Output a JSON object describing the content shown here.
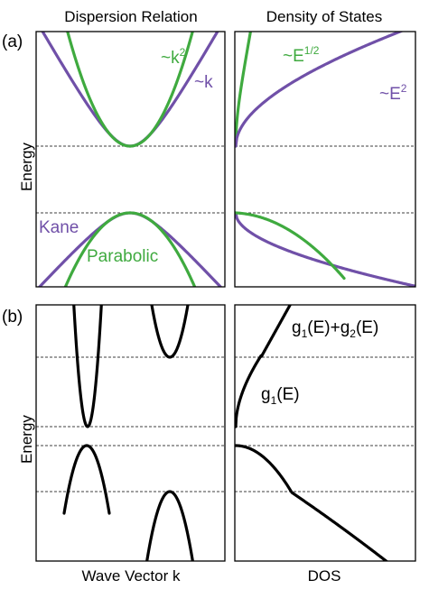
{
  "titles": {
    "dispersion": "Dispersion Relation",
    "dos": "Density of States"
  },
  "panels": {
    "a": "(a)",
    "b": "(b)"
  },
  "axes": {
    "y_label": "Energy",
    "x_label_left": "Wave Vector k",
    "x_label_right": "DOS"
  },
  "annotations_a": {
    "k2_base": "~k",
    "k2_sup": "2",
    "k": "~k",
    "e_half_base": "~E",
    "e_half_sup": "1/2",
    "e2_base": "~E",
    "e2_sup": "2",
    "kane": "Kane",
    "parabolic": "Parabolic"
  },
  "annotations_b": {
    "g1_base": "g",
    "g1_sub": "1",
    "g1_arg": "(E)",
    "gsum_g1": "g",
    "gsum_sub1": "1",
    "gsum_mid": "(E)+g",
    "gsum_sub2": "2",
    "gsum_end": "(E)"
  },
  "colors": {
    "kane": "#7050a8",
    "parabolic": "#3faa3f",
    "curve_b": "#000000"
  }
}
